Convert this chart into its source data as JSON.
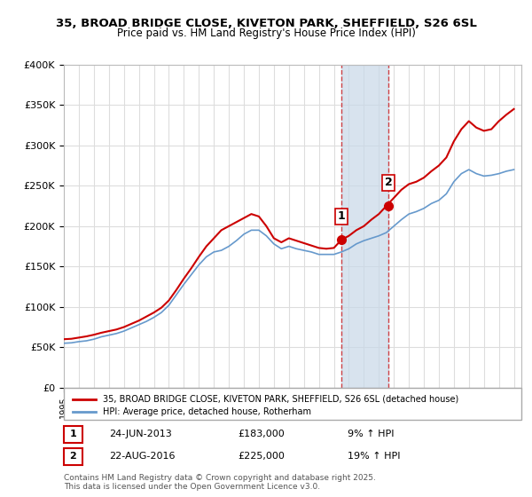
{
  "title1": "35, BROAD BRIDGE CLOSE, KIVETON PARK, SHEFFIELD, S26 6SL",
  "title2": "Price paid vs. HM Land Registry's House Price Index (HPI)",
  "ylim": [
    0,
    400000
  ],
  "xlim_start": 1995.0,
  "xlim_end": 2025.5,
  "yticks": [
    0,
    50000,
    100000,
    150000,
    200000,
    250000,
    300000,
    350000,
    400000
  ],
  "ytick_labels": [
    "£0",
    "£50K",
    "£100K",
    "£150K",
    "£200K",
    "£250K",
    "£300K",
    "£350K",
    "£400K"
  ],
  "purchase1_date": 2013.48,
  "purchase1_price": 183000,
  "purchase2_date": 2016.64,
  "purchase2_price": 225000,
  "legend_property": "35, BROAD BRIDGE CLOSE, KIVETON PARK, SHEFFIELD, S26 6SL (detached house)",
  "legend_hpi": "HPI: Average price, detached house, Rotherham",
  "ann1_date": "24-JUN-2013",
  "ann1_price": "£183,000",
  "ann1_hpi": "9% ↑ HPI",
  "ann2_date": "22-AUG-2016",
  "ann2_price": "£225,000",
  "ann2_hpi": "19% ↑ HPI",
  "footer": "Contains HM Land Registry data © Crown copyright and database right 2025.\nThis data is licensed under the Open Government Licence v3.0.",
  "line_color_property": "#cc0000",
  "line_color_hpi": "#6699cc",
  "shade_color": "#c8d8e8",
  "grid_color": "#dddddd",
  "bg_color": "#ffffff"
}
